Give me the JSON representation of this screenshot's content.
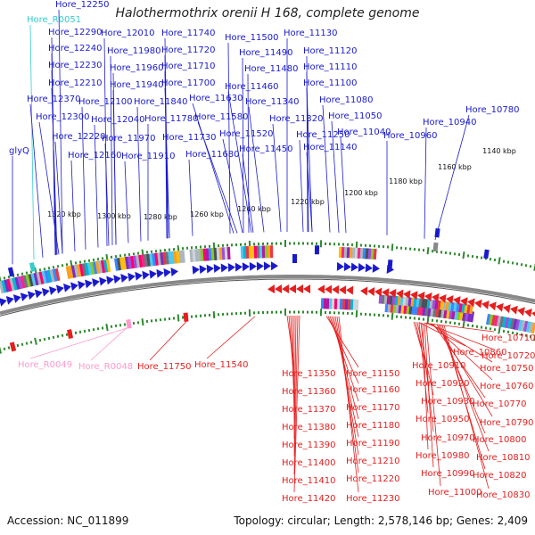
{
  "title": "Halothermothrix orenii H 168, complete genome",
  "accession": "Accession: NC_011899",
  "topology": "Topology: circular; Length: 2,578,146 bp; Genes: 2,409",
  "colors": {
    "forward": "#1a1acc",
    "reverse": "#e61e1e",
    "trna": "#ff99cc",
    "rrna": "#33cccc",
    "tick": "#2e8b2e",
    "backbone": "#888888"
  },
  "kbp_labels": [
    "1140 kbp",
    "1160 kbp",
    "1180 kbp",
    "1200 kbp",
    "1220 kbp",
    "1240 kbp",
    "1260 kbp",
    "1280 kbp",
    "1300 kbp",
    "1320 kbp"
  ],
  "gene_labels": [
    {
      "id": "l_12250",
      "text": "Hore_12250",
      "strand": "forward"
    },
    {
      "id": "l_R0051",
      "text": "Hore_R0051",
      "strand": "rrna"
    },
    {
      "id": "l_12290",
      "text": "Hore_12290",
      "strand": "forward"
    },
    {
      "id": "l_12010",
      "text": "Hore_12010",
      "strand": "forward"
    },
    {
      "id": "l_11740",
      "text": "Hore_11740",
      "strand": "forward"
    },
    {
      "id": "l_11130",
      "text": "Hore_11130",
      "strand": "forward"
    },
    {
      "id": "l_11500",
      "text": "Hore_11500",
      "strand": "forward"
    },
    {
      "id": "l_12240",
      "text": "Hore_12240",
      "strand": "forward"
    },
    {
      "id": "l_11980",
      "text": "Hore_11980",
      "strand": "forward"
    },
    {
      "id": "l_11720",
      "text": "Hore_11720",
      "strand": "forward"
    },
    {
      "id": "l_11490",
      "text": "Hore_11490",
      "strand": "forward"
    },
    {
      "id": "l_11120",
      "text": "Hore_11120",
      "strand": "forward"
    },
    {
      "id": "l_12230",
      "text": "Hore_12230",
      "strand": "forward"
    },
    {
      "id": "l_11960",
      "text": "Hore_11960",
      "strand": "forward"
    },
    {
      "id": "l_11710",
      "text": "Hore_11710",
      "strand": "forward"
    },
    {
      "id": "l_11480",
      "text": "Hore_11480",
      "strand": "forward"
    },
    {
      "id": "l_11110",
      "text": "Hore_11110",
      "strand": "forward"
    },
    {
      "id": "l_12210",
      "text": "Hore_12210",
      "strand": "forward"
    },
    {
      "id": "l_11940",
      "text": "Hore_11940",
      "strand": "forward"
    },
    {
      "id": "l_11700",
      "text": "Hore_11700",
      "strand": "forward"
    },
    {
      "id": "l_11460",
      "text": "Hore_11460",
      "strand": "forward"
    },
    {
      "id": "l_11100",
      "text": "Hore_11100",
      "strand": "forward"
    },
    {
      "id": "l_12370",
      "text": "Hore_12370",
      "strand": "forward"
    },
    {
      "id": "l_12100",
      "text": "Hore_12100",
      "strand": "forward"
    },
    {
      "id": "l_11840",
      "text": "Hore_11840",
      "strand": "forward"
    },
    {
      "id": "l_11630",
      "text": "Hore_11630",
      "strand": "forward"
    },
    {
      "id": "l_11340",
      "text": "Hore_11340",
      "strand": "forward"
    },
    {
      "id": "l_11080",
      "text": "Hore_11080",
      "strand": "forward"
    },
    {
      "id": "l_10780",
      "text": "Hore_10780",
      "strand": "forward"
    },
    {
      "id": "l_12300",
      "text": "Hore_12300",
      "strand": "forward"
    },
    {
      "id": "l_12040",
      "text": "Hore_12040",
      "strand": "forward"
    },
    {
      "id": "l_11780",
      "text": "Hore_11780",
      "strand": "forward"
    },
    {
      "id": "l_11580",
      "text": "Hore_11580",
      "strand": "forward"
    },
    {
      "id": "l_11320",
      "text": "Hore_11320",
      "strand": "forward"
    },
    {
      "id": "l_11050",
      "text": "Hore_11050",
      "strand": "forward"
    },
    {
      "id": "l_10940",
      "text": "Hore_10940",
      "strand": "forward"
    },
    {
      "id": "l_12220",
      "text": "Hore_12220",
      "strand": "forward"
    },
    {
      "id": "l_11970",
      "text": "Hore_11970",
      "strand": "forward"
    },
    {
      "id": "l_11730",
      "text": "Hore_11730",
      "strand": "forward"
    },
    {
      "id": "l_11520",
      "text": "Hore_11520",
      "strand": "forward"
    },
    {
      "id": "l_11250",
      "text": "Hore_11250",
      "strand": "forward"
    },
    {
      "id": "l_11040",
      "text": "Hore_11040",
      "strand": "forward"
    },
    {
      "id": "l_10960",
      "text": "Hore_10960",
      "strand": "forward"
    },
    {
      "id": "l_glyQ",
      "text": "glyQ",
      "strand": "forward"
    },
    {
      "id": "l_12160",
      "text": "Hore_12160",
      "strand": "forward"
    },
    {
      "id": "l_11910",
      "text": "Hore_11910",
      "strand": "forward"
    },
    {
      "id": "l_11680",
      "text": "Hore_11680",
      "strand": "forward"
    },
    {
      "id": "l_11450",
      "text": "Hore_11450",
      "strand": "forward"
    },
    {
      "id": "l_11140",
      "text": "Hore_11140",
      "strand": "forward"
    },
    {
      "id": "l_R0049",
      "text": "Hore_R0049",
      "strand": "trna"
    },
    {
      "id": "l_R0048",
      "text": "Hore_R0048",
      "strand": "trna"
    },
    {
      "id": "l_11750",
      "text": "Hore_11750",
      "strand": "reverse"
    },
    {
      "id": "l_11540",
      "text": "Hore_11540",
      "strand": "reverse"
    },
    {
      "id": "l_10710",
      "text": "Hore_10710",
      "strand": "reverse"
    },
    {
      "id": "l_10720",
      "text": "Hore_10720",
      "strand": "reverse"
    },
    {
      "id": "l_10860",
      "text": "Hore_10860",
      "strand": "reverse"
    },
    {
      "id": "l_10910",
      "text": "Hore_10910",
      "strand": "reverse"
    },
    {
      "id": "l_10750",
      "text": "Hore_10750",
      "strand": "reverse"
    },
    {
      "id": "l_11350",
      "text": "Hore_11350",
      "strand": "reverse"
    },
    {
      "id": "l_11150",
      "text": "Hore_11150",
      "strand": "reverse"
    },
    {
      "id": "l_10920",
      "text": "Hore_10920",
      "strand": "reverse"
    },
    {
      "id": "l_10760",
      "text": "Hore_10760",
      "strand": "reverse"
    },
    {
      "id": "l_11360",
      "text": "Hore_11360",
      "strand": "reverse"
    },
    {
      "id": "l_11160",
      "text": "Hore_11160",
      "strand": "reverse"
    },
    {
      "id": "l_10930",
      "text": "Hore_10930",
      "strand": "reverse"
    },
    {
      "id": "l_10770",
      "text": "Hore_10770",
      "strand": "reverse"
    },
    {
      "id": "l_11370",
      "text": "Hore_11370",
      "strand": "reverse"
    },
    {
      "id": "l_11170",
      "text": "Hore_11170",
      "strand": "reverse"
    },
    {
      "id": "l_10950",
      "text": "Hore_10950",
      "strand": "reverse"
    },
    {
      "id": "l_10790",
      "text": "Hore_10790",
      "strand": "reverse"
    },
    {
      "id": "l_11380",
      "text": "Hore_11380",
      "strand": "reverse"
    },
    {
      "id": "l_11180",
      "text": "Hore_11180",
      "strand": "reverse"
    },
    {
      "id": "l_10970",
      "text": "Hore_10970",
      "strand": "reverse"
    },
    {
      "id": "l_10800",
      "text": "Hore_10800",
      "strand": "reverse"
    },
    {
      "id": "l_11390",
      "text": "Hore_11390",
      "strand": "reverse"
    },
    {
      "id": "l_11190",
      "text": "Hore_11190",
      "strand": "reverse"
    },
    {
      "id": "l_10980",
      "text": "Hore_10980",
      "strand": "reverse"
    },
    {
      "id": "l_10810",
      "text": "Hore_10810",
      "strand": "reverse"
    },
    {
      "id": "l_11400",
      "text": "Hore_11400",
      "strand": "reverse"
    },
    {
      "id": "l_11210",
      "text": "Hore_11210",
      "strand": "reverse"
    },
    {
      "id": "l_10990",
      "text": "Hore_10990",
      "strand": "reverse"
    },
    {
      "id": "l_10820",
      "text": "Hore_10820",
      "strand": "reverse"
    },
    {
      "id": "l_11410",
      "text": "Hore_11410",
      "strand": "reverse"
    },
    {
      "id": "l_11220",
      "text": "Hore_11220",
      "strand": "reverse"
    },
    {
      "id": "l_11000",
      "text": "Hore_11000",
      "strand": "reverse"
    },
    {
      "id": "l_10830",
      "text": "Hore_10830",
      "strand": "reverse"
    },
    {
      "id": "l_11420",
      "text": "Hore_11420",
      "strand": "reverse"
    },
    {
      "id": "l_11230",
      "text": "Hore_11230",
      "strand": "reverse"
    }
  ]
}
